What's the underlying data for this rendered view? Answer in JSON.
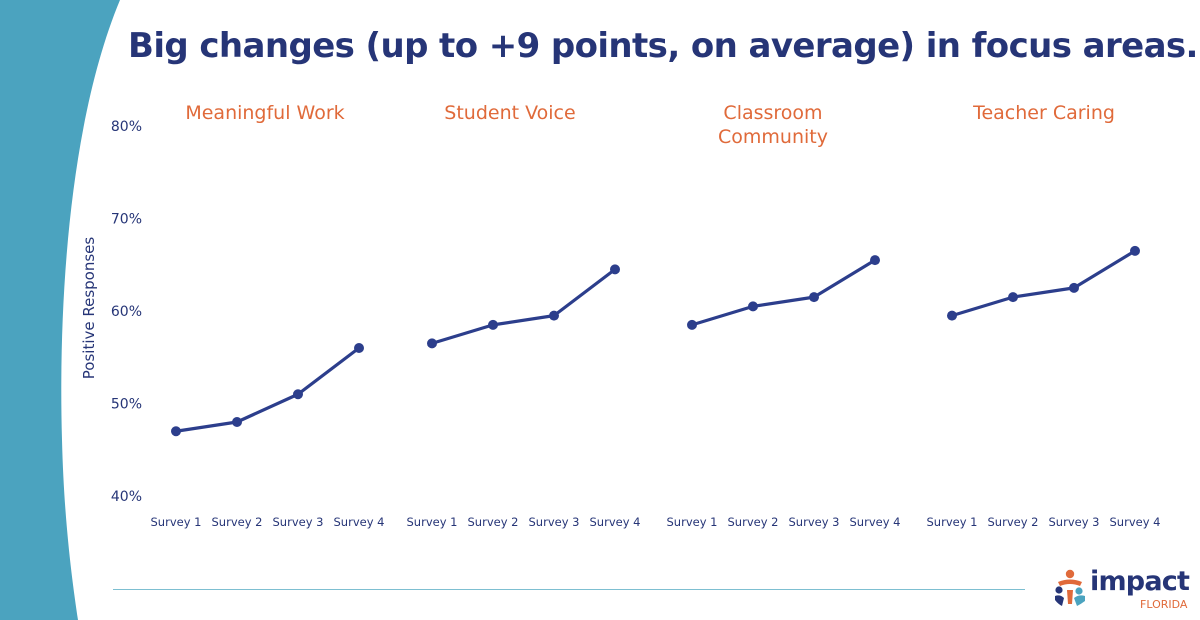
{
  "title": "Big changes (up to +9 points, on average) in focus areas.",
  "colors": {
    "title": "#263577",
    "line": "#2c3e8c",
    "panel_title": "#e06a3a",
    "left_band": "#4ba3bf",
    "footer_rule": "#7dbfd1"
  },
  "logo": {
    "word": "impact",
    "sub": "FLORIDA",
    "icon": "people-cluster-icon"
  },
  "chart_data": {
    "type": "line",
    "ylabel": "Positive Responses",
    "ylim": [
      40,
      80
    ],
    "y_ticks": [
      "80%",
      "70%",
      "60%",
      "50%",
      "40%"
    ],
    "y_tick_values": [
      80,
      70,
      60,
      50,
      40
    ],
    "grid": false,
    "panels": [
      {
        "title_lines": [
          "Meaningful Work"
        ],
        "categories": [
          "Survey 1",
          "Survey 2",
          "Survey 3",
          "Survey 4"
        ],
        "values": [
          47,
          48,
          51,
          56
        ]
      },
      {
        "title_lines": [
          "Student Voice"
        ],
        "categories": [
          "Survey 1",
          "Survey 2",
          "Survey 3",
          "Survey 4"
        ],
        "values": [
          56.5,
          58.5,
          59.5,
          64.5
        ]
      },
      {
        "title_lines": [
          "Classroom",
          "Community"
        ],
        "categories": [
          "Survey 1",
          "Survey 2",
          "Survey 3",
          "Survey 4"
        ],
        "values": [
          58.5,
          60.5,
          61.5,
          65.5
        ]
      },
      {
        "title_lines": [
          "Teacher Caring"
        ],
        "categories": [
          "Survey 1",
          "Survey 2",
          "Survey 3",
          "Survey 4"
        ],
        "values": [
          59.5,
          61.5,
          62.5,
          66.5
        ]
      }
    ]
  }
}
